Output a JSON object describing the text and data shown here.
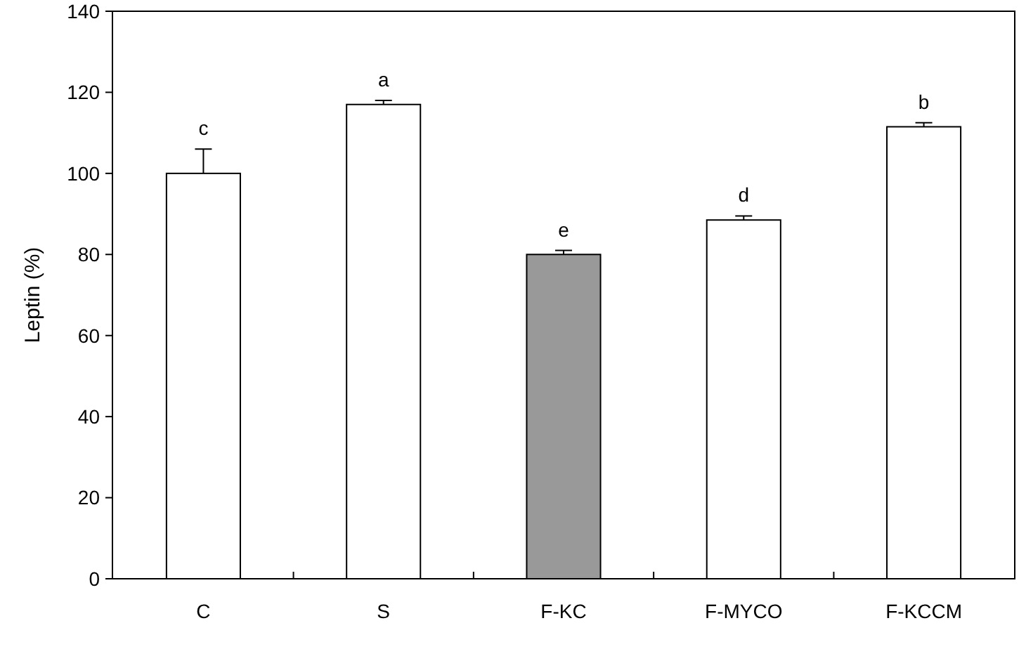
{
  "chart_data": {
    "type": "bar",
    "ylabel": "Leptin (%)",
    "categories": [
      "C",
      "S",
      "F-KC",
      "F-MYCO",
      "F-KCCM"
    ],
    "values": [
      100,
      117,
      80,
      88.5,
      111.5
    ],
    "errors": [
      6,
      1,
      1,
      1,
      1
    ],
    "colors": [
      "#ffffff",
      "#ffffff",
      "#999999",
      "#ffffff",
      "#ffffff"
    ],
    "ylim": [
      0,
      140
    ],
    "yticks": [
      0,
      20,
      40,
      60,
      80,
      100,
      120,
      140
    ],
    "grid": false,
    "annotations": [
      {
        "text": "c",
        "x": "C",
        "y": 106
      },
      {
        "text": "a",
        "x": "S",
        "y": 118
      },
      {
        "text": "e",
        "x": "F-KC",
        "y": 81
      },
      {
        "text": "d",
        "x": "F-MYCO",
        "y": 89.5
      },
      {
        "text": "b",
        "x": "F-KCCM",
        "y": 112.5
      }
    ]
  }
}
